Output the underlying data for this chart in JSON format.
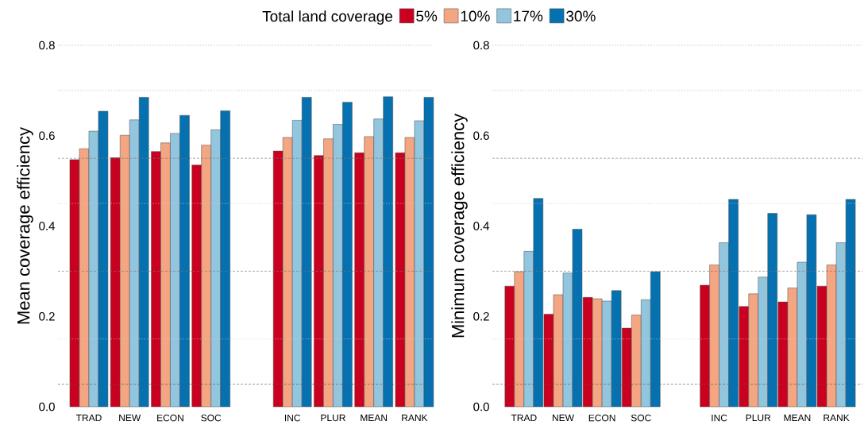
{
  "chart_data": [
    {
      "type": "bar",
      "ylabel": "Mean coverage efficiency",
      "legend_title": "Total land coverage",
      "legend": "top",
      "categories": [
        "TRAD",
        "NEW",
        "ECON",
        "SOC",
        null,
        "INC",
        "PLUR",
        "MEAN",
        "RANK"
      ],
      "series": [
        {
          "name": "5%",
          "color": "#ca0020",
          "values": [
            0.547,
            0.551,
            0.565,
            0.535,
            null,
            0.566,
            0.556,
            0.562,
            0.562
          ]
        },
        {
          "name": "10%",
          "color": "#f4a582",
          "values": [
            0.571,
            0.601,
            0.584,
            0.579,
            null,
            0.596,
            0.593,
            0.598,
            0.596
          ]
        },
        {
          "name": "17%",
          "color": "#92c5de",
          "values": [
            0.61,
            0.635,
            0.605,
            0.613,
            null,
            0.634,
            0.625,
            0.637,
            0.633
          ]
        },
        {
          "name": "30%",
          "color": "#0571b0",
          "values": [
            0.654,
            0.685,
            0.645,
            0.655,
            null,
            0.685,
            0.674,
            0.686,
            0.685
          ]
        }
      ],
      "ylim": [
        0,
        0.8
      ],
      "yticks": [
        {
          "value": 0,
          "label": "0.0"
        },
        {
          "value": 0.2,
          "label": "0.2"
        },
        {
          "value": 0.4,
          "label": "0.4"
        },
        {
          "value": 0.6,
          "label": "0.6"
        },
        {
          "value": 0.8,
          "label": "0.8"
        }
      ],
      "ref_lines": [
        {
          "axis": "y",
          "value": 0.05,
          "color": "#555555",
          "line_style": "dashed"
        },
        {
          "axis": "y",
          "value": 0.15,
          "color": "#cccccc",
          "line_style": "dotted"
        },
        {
          "axis": "y",
          "value": 0.3,
          "color": "#777777",
          "line_style": "dashed"
        },
        {
          "axis": "y",
          "value": 0.45,
          "color": "#cccccc",
          "line_style": "dotted"
        },
        {
          "axis": "y",
          "value": 0.55,
          "color": "#777777",
          "line_style": "dashed"
        },
        {
          "axis": "y",
          "value": 0.7,
          "color": "#aaaaaa",
          "line_style": "dotted"
        },
        {
          "axis": "y",
          "value": 0.8,
          "color": "#aaaaaa",
          "line_style": "dotted"
        }
      ]
    },
    {
      "type": "bar",
      "ylabel": "Minimum coverage efficiency",
      "categories": [
        "TRAD",
        "NEW",
        "ECON",
        "SOC",
        null,
        "INC",
        "PLUR",
        "MEAN",
        "RANK"
      ],
      "series": [
        {
          "color": "#ca0020",
          "values": [
            0.267,
            0.205,
            0.242,
            0.174,
            null,
            0.269,
            0.222,
            0.232,
            0.267
          ]
        },
        {
          "color": "#f4a582",
          "values": [
            0.299,
            0.248,
            0.239,
            0.203,
            null,
            0.314,
            0.25,
            0.263,
            0.314
          ]
        },
        {
          "color": "#92c5de",
          "values": [
            0.344,
            0.296,
            0.234,
            0.237,
            null,
            0.363,
            0.287,
            0.32,
            0.363
          ]
        },
        {
          "color": "#0571b0",
          "values": [
            0.461,
            0.393,
            0.257,
            0.299,
            null,
            0.459,
            0.428,
            0.425,
            0.459
          ]
        }
      ],
      "ylim": [
        0,
        0.8
      ],
      "yticks": [
        {
          "value": 0,
          "label": "0.0"
        },
        {
          "value": 0.2,
          "label": "0.2"
        },
        {
          "value": 0.4,
          "label": "0.4"
        },
        {
          "value": 0.6,
          "label": "0.6"
        },
        {
          "value": 0.8,
          "label": "0.8"
        }
      ],
      "ref_lines": [
        {
          "axis": "y",
          "value": 0.05,
          "color": "#555555",
          "line_style": "dashed"
        },
        {
          "axis": "y",
          "value": 0.15,
          "color": "#cccccc",
          "line_style": "dotted"
        },
        {
          "axis": "y",
          "value": 0.3,
          "color": "#777777",
          "line_style": "dashed"
        },
        {
          "axis": "y",
          "value": 0.45,
          "color": "#cccccc",
          "line_style": "dotted"
        },
        {
          "axis": "y",
          "value": 0.55,
          "color": "#777777",
          "line_style": "dashed"
        },
        {
          "axis": "y",
          "value": 0.7,
          "color": "#aaaaaa",
          "line_style": "dotted"
        },
        {
          "axis": "y",
          "value": 0.8,
          "color": "#aaaaaa",
          "line_style": "dotted"
        }
      ]
    }
  ]
}
